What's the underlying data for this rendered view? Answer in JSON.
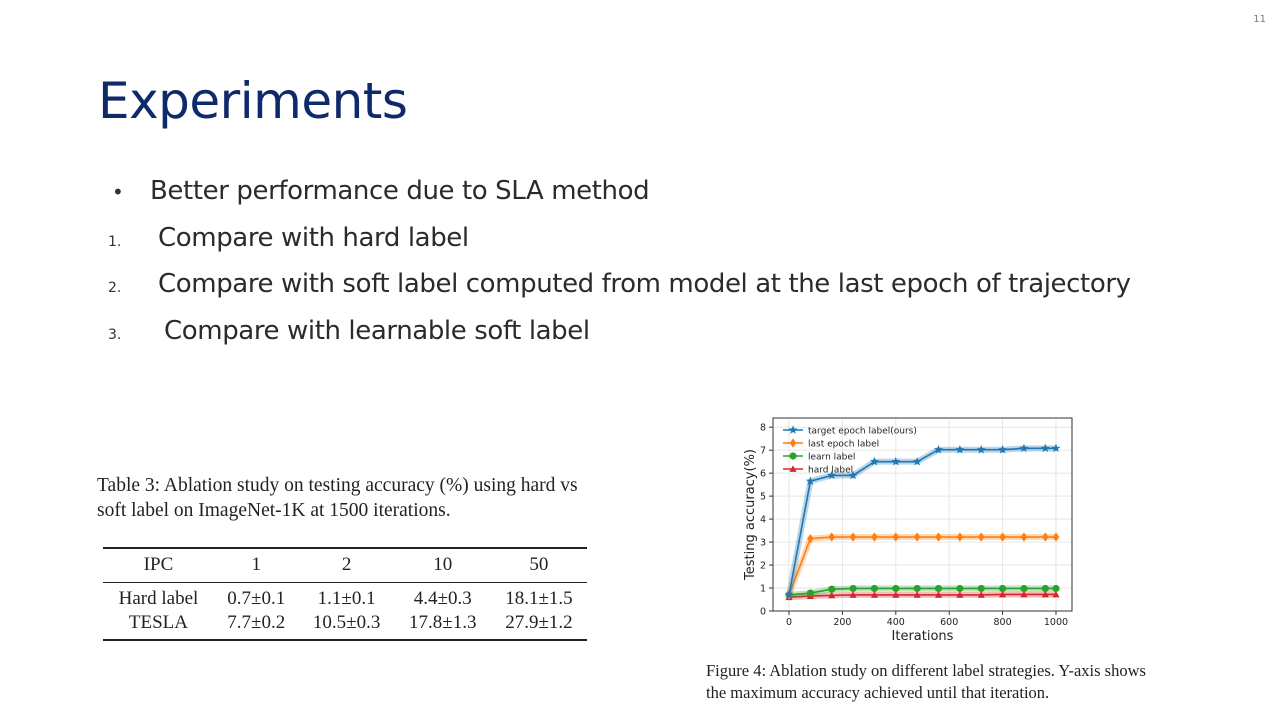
{
  "page_number": "11",
  "title": "Experiments",
  "bullets": [
    {
      "marker": "•",
      "text": "Better performance due to SLA method"
    },
    {
      "marker": "1.",
      "text": "Compare with hard label"
    },
    {
      "marker": "2.",
      "text": "Compare with soft label computed from model at the last epoch of trajectory"
    },
    {
      "marker": "3.",
      "text": "Compare with learnable soft label"
    }
  ],
  "table": {
    "caption": "Table 3: Ablation study on testing accuracy (%) using hard vs soft label on ImageNet-1K at 1500 iterations.",
    "headers": [
      "IPC",
      "1",
      "2",
      "10",
      "50"
    ],
    "rows": [
      [
        "Hard label",
        "0.7±0.1",
        "1.1±0.1",
        "4.4±0.3",
        "18.1±1.5"
      ],
      [
        "TESLA",
        "7.7±0.2",
        "10.5±0.3",
        "17.8±1.3",
        "27.9±1.2"
      ]
    ]
  },
  "figure": {
    "caption": "Figure 4: Ablation study on different label strategies. Y-axis shows the maximum accuracy achieved until that iteration."
  },
  "chart_data": {
    "type": "line",
    "xlabel": "Iterations",
    "ylabel": "Testing accuracy(%)",
    "xlim": [
      -60,
      1060
    ],
    "ylim": [
      0,
      8.4
    ],
    "xticks": [
      0,
      200,
      400,
      600,
      800,
      1000
    ],
    "yticks": [
      0,
      1,
      2,
      3,
      4,
      5,
      6,
      7,
      8
    ],
    "grid": true,
    "legend_position": "top-left",
    "x": [
      0,
      80,
      160,
      240,
      320,
      400,
      480,
      560,
      640,
      720,
      800,
      880,
      960,
      1000
    ],
    "series": [
      {
        "name": "target epoch label(ours)",
        "color": "#1f77b4",
        "marker": "star",
        "values": [
          0.7,
          5.65,
          5.9,
          5.9,
          6.5,
          6.5,
          6.5,
          7.02,
          7.02,
          7.02,
          7.02,
          7.08,
          7.08,
          7.08
        ]
      },
      {
        "name": "last epoch label",
        "color": "#ff7f0e",
        "marker": "diamond",
        "values": [
          0.7,
          3.15,
          3.22,
          3.22,
          3.22,
          3.22,
          3.22,
          3.22,
          3.22,
          3.22,
          3.22,
          3.22,
          3.22,
          3.22
        ]
      },
      {
        "name": "learn label",
        "color": "#2ca02c",
        "marker": "circle",
        "values": [
          0.7,
          0.78,
          0.95,
          0.98,
          0.98,
          0.98,
          0.98,
          0.98,
          0.98,
          0.98,
          0.98,
          0.98,
          0.98,
          0.98
        ]
      },
      {
        "name": "hard label",
        "color": "#d62728",
        "marker": "triangle",
        "values": [
          0.6,
          0.65,
          0.68,
          0.7,
          0.7,
          0.7,
          0.7,
          0.7,
          0.7,
          0.7,
          0.72,
          0.72,
          0.72,
          0.72
        ]
      }
    ]
  }
}
